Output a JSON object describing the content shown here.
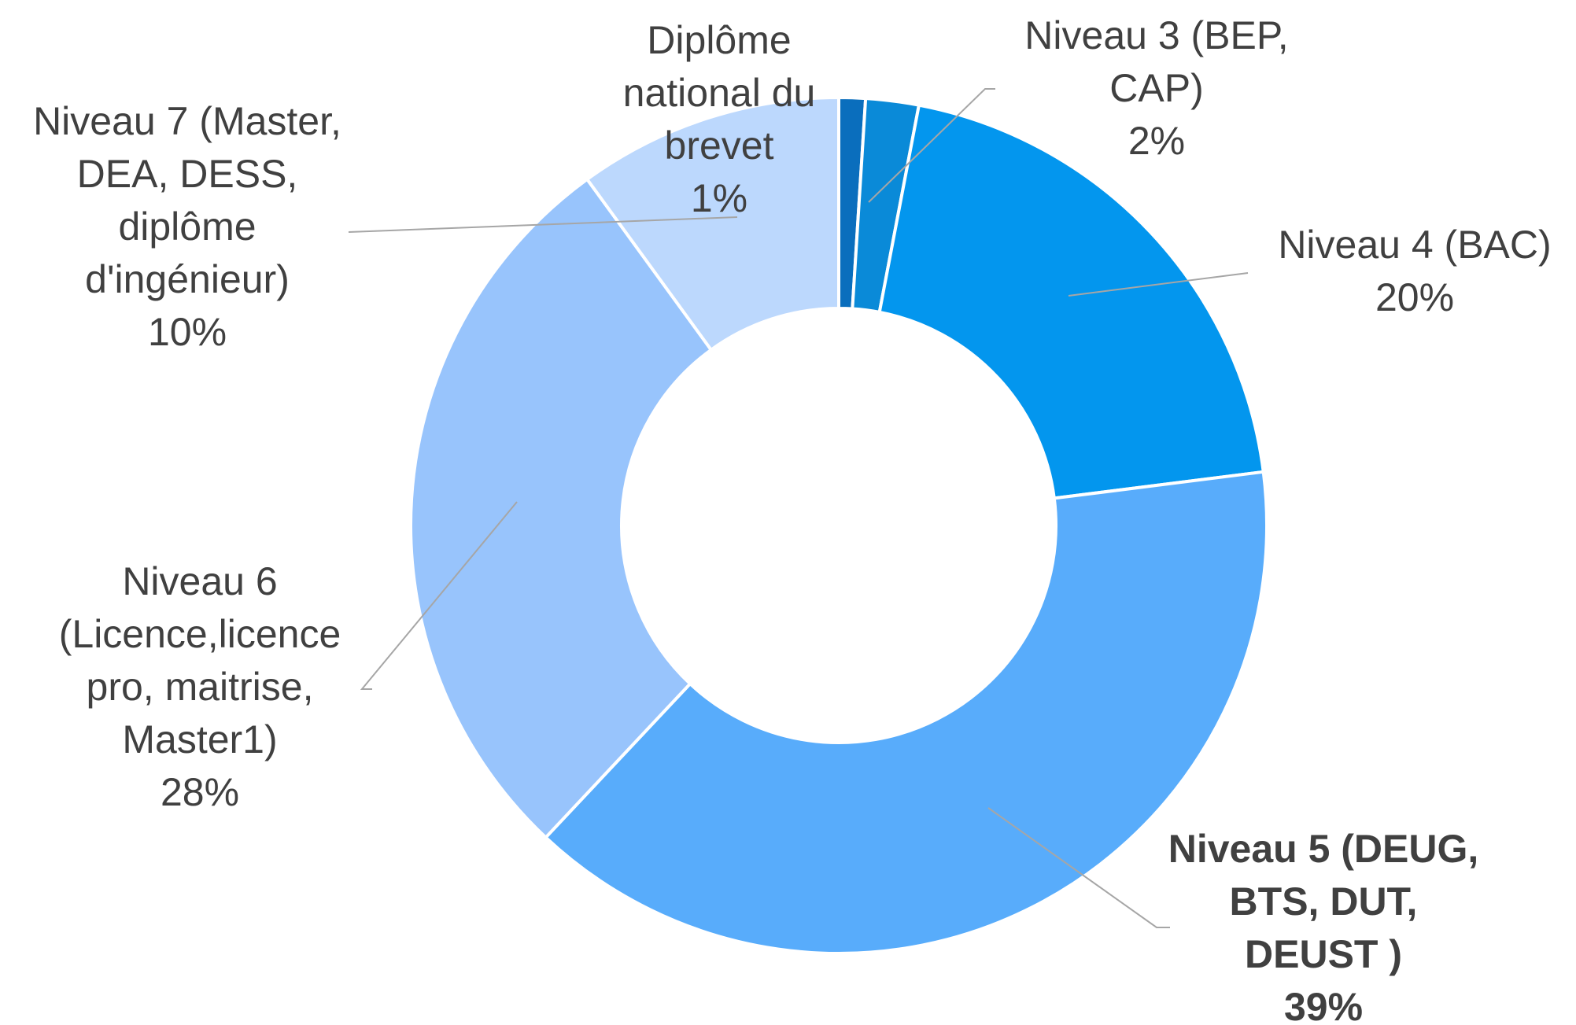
{
  "chart_data": {
    "type": "donut",
    "categories": [
      "Diplôme national du brevet",
      "Niveau 3 (BEP, CAP)",
      "Niveau 4 (BAC)",
      "Niveau 5 (DEUG, BTS, DUT, DEUST )",
      "Niveau 6 (Licence,licence pro, maitrise, Master1)",
      "Niveau 7 (Master, DEA, DESS, diplôme d'ingénieur)"
    ],
    "values": [
      1,
      2,
      20,
      39,
      28,
      10
    ],
    "value_labels": [
      "1%",
      "2%",
      "20%",
      "39%",
      "28%",
      "10%"
    ],
    "colors": [
      "#0a6ebd",
      "#0a8ad8",
      "#0396ee",
      "#58acfb",
      "#98c4fc",
      "#bcd8fd"
    ]
  }
}
